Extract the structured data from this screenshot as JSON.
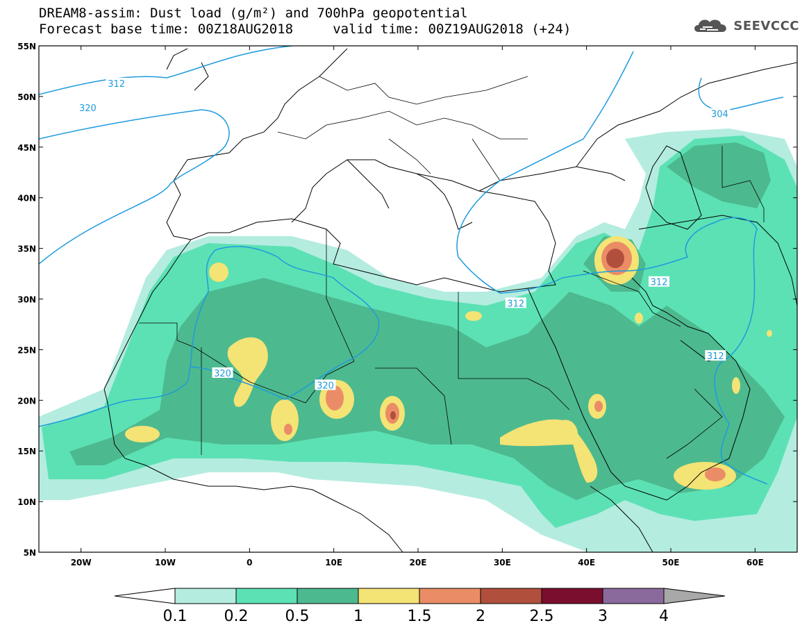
{
  "title": {
    "line1": "DREAM8-assim: Dust load (g/m²) and 700hPa geopotential",
    "line2": "Forecast base time: 00Z18AUG2018     valid time: 00Z19AUG2018 (+24)"
  },
  "logo": {
    "text": "SEEVCCC",
    "icon": "cloud-icon"
  },
  "map": {
    "lon_range": [
      -25,
      65
    ],
    "lat_range": [
      5,
      55
    ],
    "x_ticks": [
      {
        "value": -20,
        "label": "20W"
      },
      {
        "value": -10,
        "label": "10W"
      },
      {
        "value": 0,
        "label": "0"
      },
      {
        "value": 10,
        "label": "10E"
      },
      {
        "value": 20,
        "label": "20E"
      },
      {
        "value": 30,
        "label": "30E"
      },
      {
        "value": 40,
        "label": "40E"
      },
      {
        "value": 50,
        "label": "50E"
      },
      {
        "value": 60,
        "label": "60E"
      }
    ],
    "y_ticks": [
      {
        "value": 5,
        "label": "5N"
      },
      {
        "value": 10,
        "label": "10N"
      },
      {
        "value": 15,
        "label": "15N"
      },
      {
        "value": 20,
        "label": "20N"
      },
      {
        "value": 25,
        "label": "25N"
      },
      {
        "value": 30,
        "label": "30N"
      },
      {
        "value": 35,
        "label": "35N"
      },
      {
        "value": 40,
        "label": "40N"
      },
      {
        "value": 45,
        "label": "45N"
      },
      {
        "value": 50,
        "label": "50N"
      },
      {
        "value": 55,
        "label": "55N"
      }
    ],
    "contour_labels": [
      {
        "text": "312",
        "lon": -15.8,
        "lat": 51.3
      },
      {
        "text": "320",
        "lon": -19.2,
        "lat": 48.9
      },
      {
        "text": "304",
        "lon": 55.8,
        "lat": 48.3
      },
      {
        "text": "312",
        "lon": 48.6,
        "lat": 31.7
      },
      {
        "text": "312",
        "lon": 31.6,
        "lat": 29.6
      },
      {
        "text": "320",
        "lon": -3.2,
        "lat": 22.7
      },
      {
        "text": "320",
        "lon": 9.0,
        "lat": 21.5
      },
      {
        "text": "312",
        "lon": 55.3,
        "lat": 24.4
      }
    ]
  },
  "colorbar": {
    "labels": [
      "0.1",
      "0.2",
      "0.5",
      "1",
      "1.5",
      "2",
      "2.5",
      "3",
      "4"
    ],
    "colors": [
      "#b4ece0",
      "#5ce1b4",
      "#4db98f",
      "#f4e375",
      "#ea8d66",
      "#b14f3d",
      "#7a0e2e",
      "#8a6a9c"
    ],
    "low_end": "#ffffff",
    "high_end": "#a8a8a8"
  },
  "colors": {
    "contour": "#1e9bdc",
    "coast": "#000000",
    "level_01": "#b4ece0",
    "level_02": "#5ce1b4",
    "level_05": "#4db98f",
    "level_1": "#f4e375",
    "level_15": "#ea8d66",
    "level_2": "#b14f3d"
  }
}
